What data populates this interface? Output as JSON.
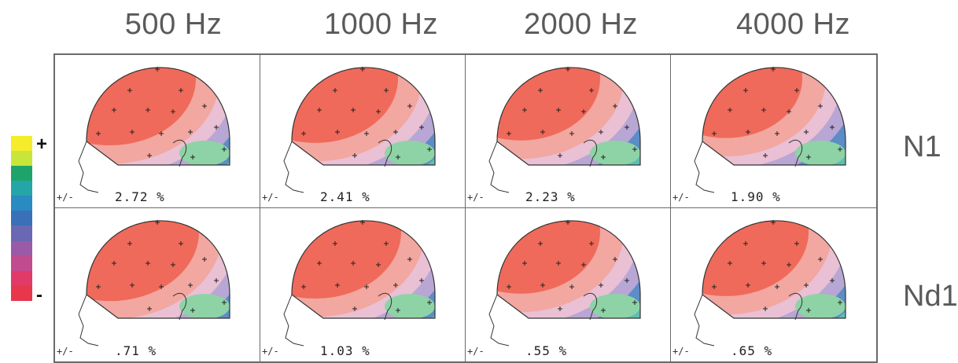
{
  "columns": [
    "500 Hz",
    "1000 Hz",
    "2000 Hz",
    "4000 Hz"
  ],
  "rows": [
    "N1",
    "Nd1"
  ],
  "panels": [
    {
      "plusminus": "+/-",
      "value": "2.72 %",
      "fronto_positive": 0.55
    },
    {
      "plusminus": "+/-",
      "value": "2.41 %",
      "fronto_positive": 0.5
    },
    {
      "plusminus": "+/-",
      "value": "2.23 %",
      "fronto_positive": 0.45
    },
    {
      "plusminus": "+/-",
      "value": "1.90 %",
      "fronto_positive": 0.4
    },
    {
      "plusminus": "+/-",
      "value": ".71 %",
      "fronto_positive": 0.6
    },
    {
      "plusminus": "+/-",
      "value": "1.03 %",
      "fronto_positive": 0.55
    },
    {
      "plusminus": "+/-",
      "value": ".55 %",
      "fronto_positive": 0.45
    },
    {
      "plusminus": "+/-",
      "value": ".65 %",
      "fronto_positive": 0.5
    }
  ],
  "scale": {
    "plus": "+",
    "minus": "-",
    "colors": [
      "#f5ec2a",
      "#c8e63a",
      "#1ea36a",
      "#24a6a8",
      "#2a8ac2",
      "#3a70b8",
      "#6a68b4",
      "#9a5aa8",
      "#c24a8e",
      "#e13a68",
      "#e8364c"
    ]
  },
  "palette": {
    "red": "#ef6a5a",
    "salmon": "#f2a7a0",
    "pink": "#e9c0d4",
    "lavender": "#b8a6d4",
    "blue": "#5c8dc6",
    "teal": "#5dbfb2",
    "green": "#8ed3a6"
  }
}
